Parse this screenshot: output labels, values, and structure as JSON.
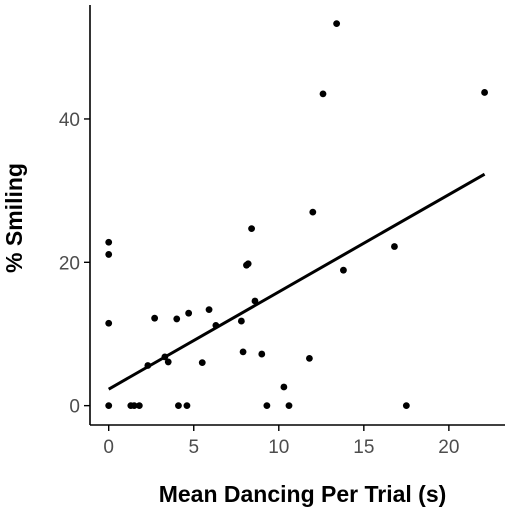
{
  "chart_data": {
    "type": "scatter",
    "title": "",
    "xlabel": "Mean Dancing Per Trial (s)",
    "ylabel": "% Smiling",
    "xlim": [
      -1.1,
      23.3
    ],
    "ylim": [
      -2.7,
      55.9
    ],
    "xticks": [
      0,
      5,
      10,
      15,
      20
    ],
    "yticks": [
      0,
      20,
      40
    ],
    "xtick_labels": [
      "0",
      "5",
      "10",
      "15",
      "20"
    ],
    "ytick_labels": [
      "0",
      "20",
      "40"
    ],
    "grid": false,
    "legend": "none",
    "colors": {
      "points": "#000000",
      "fit_line": "#000000",
      "axis": "#000000",
      "tick_labels": "#4d4d4d"
    },
    "points": [
      {
        "x": 0.0,
        "y": 22.8
      },
      {
        "x": 0.0,
        "y": 21.1
      },
      {
        "x": 0.0,
        "y": 11.5
      },
      {
        "x": 0.0,
        "y": 0.0
      },
      {
        "x": 1.3,
        "y": 0.0
      },
      {
        "x": 1.5,
        "y": 0.0
      },
      {
        "x": 1.8,
        "y": 0.0
      },
      {
        "x": 2.3,
        "y": 5.6
      },
      {
        "x": 2.7,
        "y": 12.2
      },
      {
        "x": 3.3,
        "y": 6.8
      },
      {
        "x": 3.5,
        "y": 6.1
      },
      {
        "x": 4.0,
        "y": 12.1
      },
      {
        "x": 4.1,
        "y": 0.0
      },
      {
        "x": 4.6,
        "y": 0.0
      },
      {
        "x": 4.7,
        "y": 12.9
      },
      {
        "x": 5.5,
        "y": 6.0
      },
      {
        "x": 5.9,
        "y": 13.4
      },
      {
        "x": 6.3,
        "y": 11.2
      },
      {
        "x": 7.8,
        "y": 11.8
      },
      {
        "x": 7.9,
        "y": 7.5
      },
      {
        "x": 8.1,
        "y": 19.6
      },
      {
        "x": 8.2,
        "y": 19.8
      },
      {
        "x": 8.4,
        "y": 24.7
      },
      {
        "x": 8.6,
        "y": 14.6
      },
      {
        "x": 9.0,
        "y": 7.2
      },
      {
        "x": 9.3,
        "y": 0.0
      },
      {
        "x": 10.3,
        "y": 2.6
      },
      {
        "x": 10.6,
        "y": 0.0
      },
      {
        "x": 11.8,
        "y": 6.6
      },
      {
        "x": 12.0,
        "y": 27.0
      },
      {
        "x": 12.6,
        "y": 43.5
      },
      {
        "x": 13.4,
        "y": 53.3
      },
      {
        "x": 13.8,
        "y": 18.9
      },
      {
        "x": 16.8,
        "y": 22.2
      },
      {
        "x": 17.5,
        "y": 0.0
      },
      {
        "x": 22.1,
        "y": 43.7
      }
    ],
    "fit_line": {
      "x": [
        0.0,
        22.1
      ],
      "y": [
        2.3,
        32.3
      ]
    }
  }
}
